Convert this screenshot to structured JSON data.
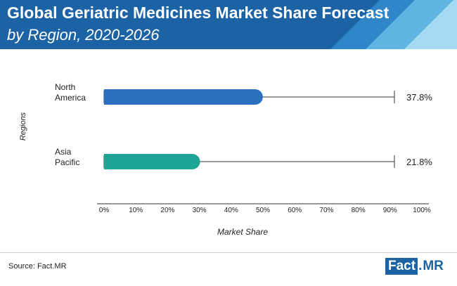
{
  "header": {
    "title_line1": "Global Geriatric Medicines Market Share Forecast",
    "title_line2": "by Region, 2020-2026"
  },
  "colors": {
    "header_bg": "#1c63a6",
    "north_america": "#2b6fbf",
    "asia_pacific": "#1fa597",
    "axis": "#333333"
  },
  "chart_data": {
    "type": "bar",
    "orientation": "horizontal",
    "categories": [
      [
        "North",
        "America"
      ],
      [
        "Asia",
        "Pacific"
      ]
    ],
    "values": [
      37.8,
      21.8
    ],
    "value_labels": [
      "37.8%",
      "21.8%"
    ],
    "xlim": [
      0,
      100
    ],
    "xticks": [
      "0%",
      "10%",
      "20%",
      "30%",
      "40%",
      "50%",
      "60%",
      "70%",
      "80%",
      "90%",
      "100%"
    ],
    "xlabel": "Market Share",
    "ylabel": "Regions",
    "grid": false
  },
  "footer": {
    "source": "Source: Fact.MR",
    "logo_fact": "Fact",
    "logo_dot": ".",
    "logo_mr": "MR"
  }
}
